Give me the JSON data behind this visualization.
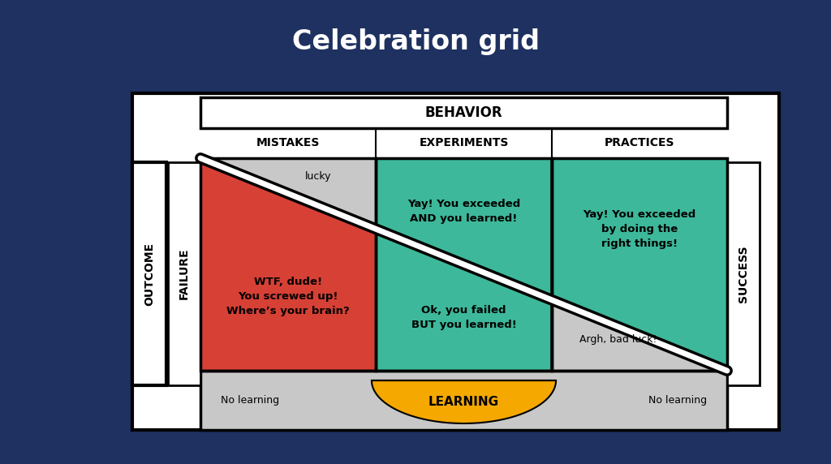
{
  "title": "Celebration grid",
  "bg_color": "#1e3160",
  "white": "#ffffff",
  "light_gray": "#c8c8c8",
  "red": "#d64035",
  "teal": "#3db89a",
  "yellow": "#f5a800",
  "dark": "#111111",
  "black": "#000000",
  "behavior_label": "BEHAVIOR",
  "outcome_label": "OUTCOME",
  "failure_label": "FAILURE",
  "success_label": "SUCCESS",
  "col_labels": [
    "MISTAKES",
    "EXPERIMENTS",
    "PRACTICES"
  ],
  "learning_label": "LEARNING",
  "no_learning_left": "No learning",
  "no_learning_right": "No learning",
  "lucky_text": "lucky",
  "wtf_text": "WTF, dude!\nYou screwed up!\nWhere’s your brain?",
  "yay_exceeded_learned": "Yay! You exceeded\nAND you learned!",
  "ok_failed_learned": "Ok, you failed\nBUT you learned!",
  "yay_right_things": "Yay! You exceeded\nby doing the\nright things!",
  "argh_text": "Argh, bad luck!",
  "figsize": [
    10.24,
    5.72
  ],
  "dpi": 100
}
